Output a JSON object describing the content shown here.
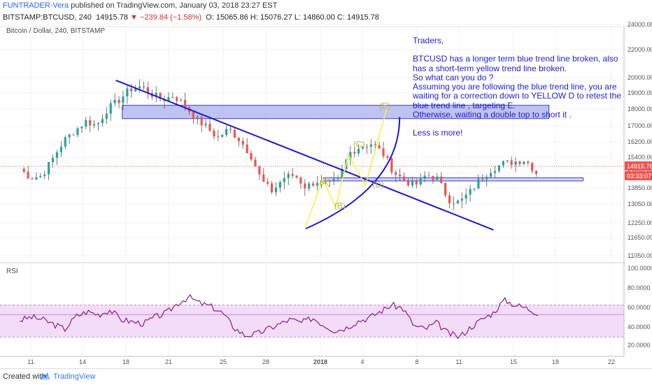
{
  "header": {
    "author": "FUNTRADER-Vera",
    "published": " published on TradingView.com, January 03, 2018 23:27 EST",
    "symbol_interval": "BITSTAMP:BTCUSD, 240",
    "last": "14915.78",
    "change": "▼ −239.84 (−1.58%)",
    "ohlc": "O: 15065.86 H: 15076.27 L: 14860.00 C: 14915.78"
  },
  "footer": {
    "created_with": "Created with",
    "brand": "TradingView"
  },
  "annotation": {
    "greeting": "Traders,",
    "lines": [
      "BTCUSD has a longer term blue trend line broken, also has a short-term  yellow trend line broken.",
      "So what can you do ?",
      "Assuming   you are following the blue trend line, you are waiting for a correction down to YELLOW D to retest the blue trend line , targeting E.",
      "Otherwise, waiting a double top to short it ."
    ],
    "closing": "Less is more!"
  },
  "colors": {
    "up": "#26a69a",
    "down": "#ef5350",
    "trendline": "#1a1acd",
    "zone_fill": "#b3b8ee",
    "zone_stroke": "#3b3bd9",
    "pattern": "#f5f04a",
    "rsi_line": "#8e1c8e",
    "rsi_band": "#f2dcf7"
  },
  "chart_data": [
    {
      "type": "candlestick",
      "title": "Bitcoin / Dollar, 240, BITSTAMP",
      "x_ticks": [
        "11",
        "14",
        "18",
        "21",
        "25",
        "28",
        "2018",
        "4",
        "8",
        "11",
        "15",
        "18",
        "22"
      ],
      "y_ticks": [
        "24000.00",
        "22000.00",
        "20000.00",
        "19000.00",
        "18000.00",
        "17000.00",
        "16200.00",
        "15400.00",
        "14600.00",
        "13850.00",
        "13050.00",
        "12250.00",
        "11650.00",
        "11050.00"
      ],
      "y_scale": "log",
      "ylim": [
        10700,
        25000
      ],
      "price_label": "14915.78",
      "countdown": "03:33:07",
      "x_domain": [
        0,
        135
      ],
      "close_series": [
        14800,
        14350,
        14450,
        15300,
        16250,
        16800,
        17350,
        17100,
        18100,
        18600,
        19300,
        19500,
        19000,
        18650,
        18900,
        18300,
        17500,
        17000,
        16400,
        16900,
        16300,
        15500,
        14200,
        13700,
        14350,
        14500,
        13900,
        14200,
        14000,
        14250,
        15600,
        15950,
        16100,
        15600,
        14650,
        14200,
        14000,
        14500,
        14300,
        13350,
        13200,
        13700,
        14350,
        14800,
        15050,
        15150,
        15250,
        14600
      ],
      "labels": [
        {
          "text": "(A)",
          "t": 101,
          "price": 14000
        },
        {
          "text": "(B)",
          "t": 104,
          "price": 12950
        },
        {
          "text": "(C)",
          "t": 113,
          "price": 15900
        },
        {
          "text": "(D)",
          "t": 120,
          "price": 13900
        },
        {
          "text": "(E)",
          "t": 123,
          "price": 18100
        }
      ]
    },
    {
      "type": "line",
      "title": "RSI",
      "y_ticks": [
        "100.0000",
        "80.0000",
        "60.0000",
        "40.0000",
        "20.0000"
      ],
      "ylim": [
        10,
        102
      ],
      "bands": [
        30,
        70
      ],
      "reference": 58,
      "values": [
        51,
        55,
        52,
        46,
        40,
        56,
        62,
        58,
        64,
        52,
        49,
        47,
        55,
        60,
        72,
        80,
        72,
        68,
        60,
        42,
        32,
        34,
        40,
        46,
        52,
        48,
        54,
        45,
        38,
        42,
        50,
        54,
        62,
        70,
        66,
        44,
        40,
        48,
        35,
        30,
        42,
        52,
        60,
        76,
        70,
        66,
        60
      ]
    }
  ]
}
